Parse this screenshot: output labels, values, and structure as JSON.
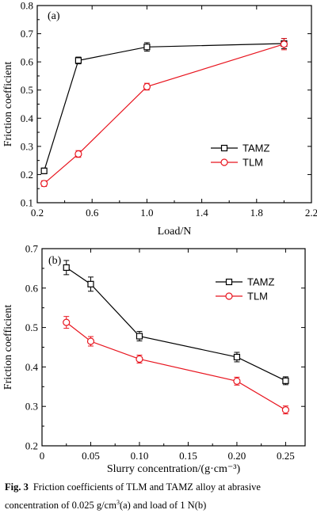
{
  "chart_data": [
    {
      "type": "line",
      "panel_label": "(a)",
      "xlabel": "Load/N",
      "ylabel": "Friction coefficient",
      "xlim": [
        0.2,
        2.2
      ],
      "ylim": [
        0.1,
        0.8
      ],
      "xticks": [
        "0.2",
        "0.6",
        "1.0",
        "1.4",
        "1.8",
        "2.2"
      ],
      "yticks": [
        "0.1",
        "0.2",
        "0.3",
        "0.4",
        "0.5",
        "0.6",
        "0.7",
        "0.8"
      ],
      "legend_position": "center-right",
      "series": [
        {
          "name": "TAMZ",
          "color": "#000000",
          "marker": "square",
          "x": [
            0.25,
            0.5,
            1.0,
            2.0
          ],
          "y": [
            0.213,
            0.605,
            0.653,
            0.665
          ],
          "err": [
            0.01,
            0.012,
            0.015,
            0.018
          ]
        },
        {
          "name": "TLM",
          "color": "#e8141e",
          "marker": "circle",
          "x": [
            0.25,
            0.5,
            1.0,
            2.0
          ],
          "y": [
            0.168,
            0.273,
            0.512,
            0.663
          ],
          "err": [
            0.01,
            0.012,
            0.012,
            0.02
          ]
        }
      ]
    },
    {
      "type": "line",
      "panel_label": "(b)",
      "xlabel": "Slurry concentration/(g·cm⁻³)",
      "ylabel": "Friction coefficient",
      "xlim": [
        0.0,
        0.27
      ],
      "ylim": [
        0.2,
        0.7
      ],
      "xticks": [
        "0",
        "0.05",
        "0.10",
        "0.15",
        "0.20",
        "0.25"
      ],
      "yticks": [
        "0.2",
        "0.3",
        "0.4",
        "0.5",
        "0.6",
        "0.7"
      ],
      "legend_position": "top-right",
      "series": [
        {
          "name": "TAMZ",
          "color": "#000000",
          "marker": "square",
          "x": [
            0.025,
            0.05,
            0.1,
            0.2,
            0.25
          ],
          "y": [
            0.652,
            0.61,
            0.478,
            0.425,
            0.365
          ],
          "err": [
            0.018,
            0.018,
            0.012,
            0.012,
            0.01
          ]
        },
        {
          "name": "TLM",
          "color": "#e8141e",
          "marker": "circle",
          "x": [
            0.025,
            0.05,
            0.1,
            0.2,
            0.25
          ],
          "y": [
            0.513,
            0.465,
            0.42,
            0.364,
            0.291
          ],
          "err": [
            0.015,
            0.012,
            0.01,
            0.01,
            0.01
          ]
        }
      ]
    }
  ],
  "caption": {
    "fig_num": "Fig. 3",
    "text_1": "Friction coefficients of TLM and TAMZ alloy at abrasive concentration of 0.025 g/cm",
    "sup": "3",
    "text_2": "(a) and load of 1 N(b)"
  }
}
